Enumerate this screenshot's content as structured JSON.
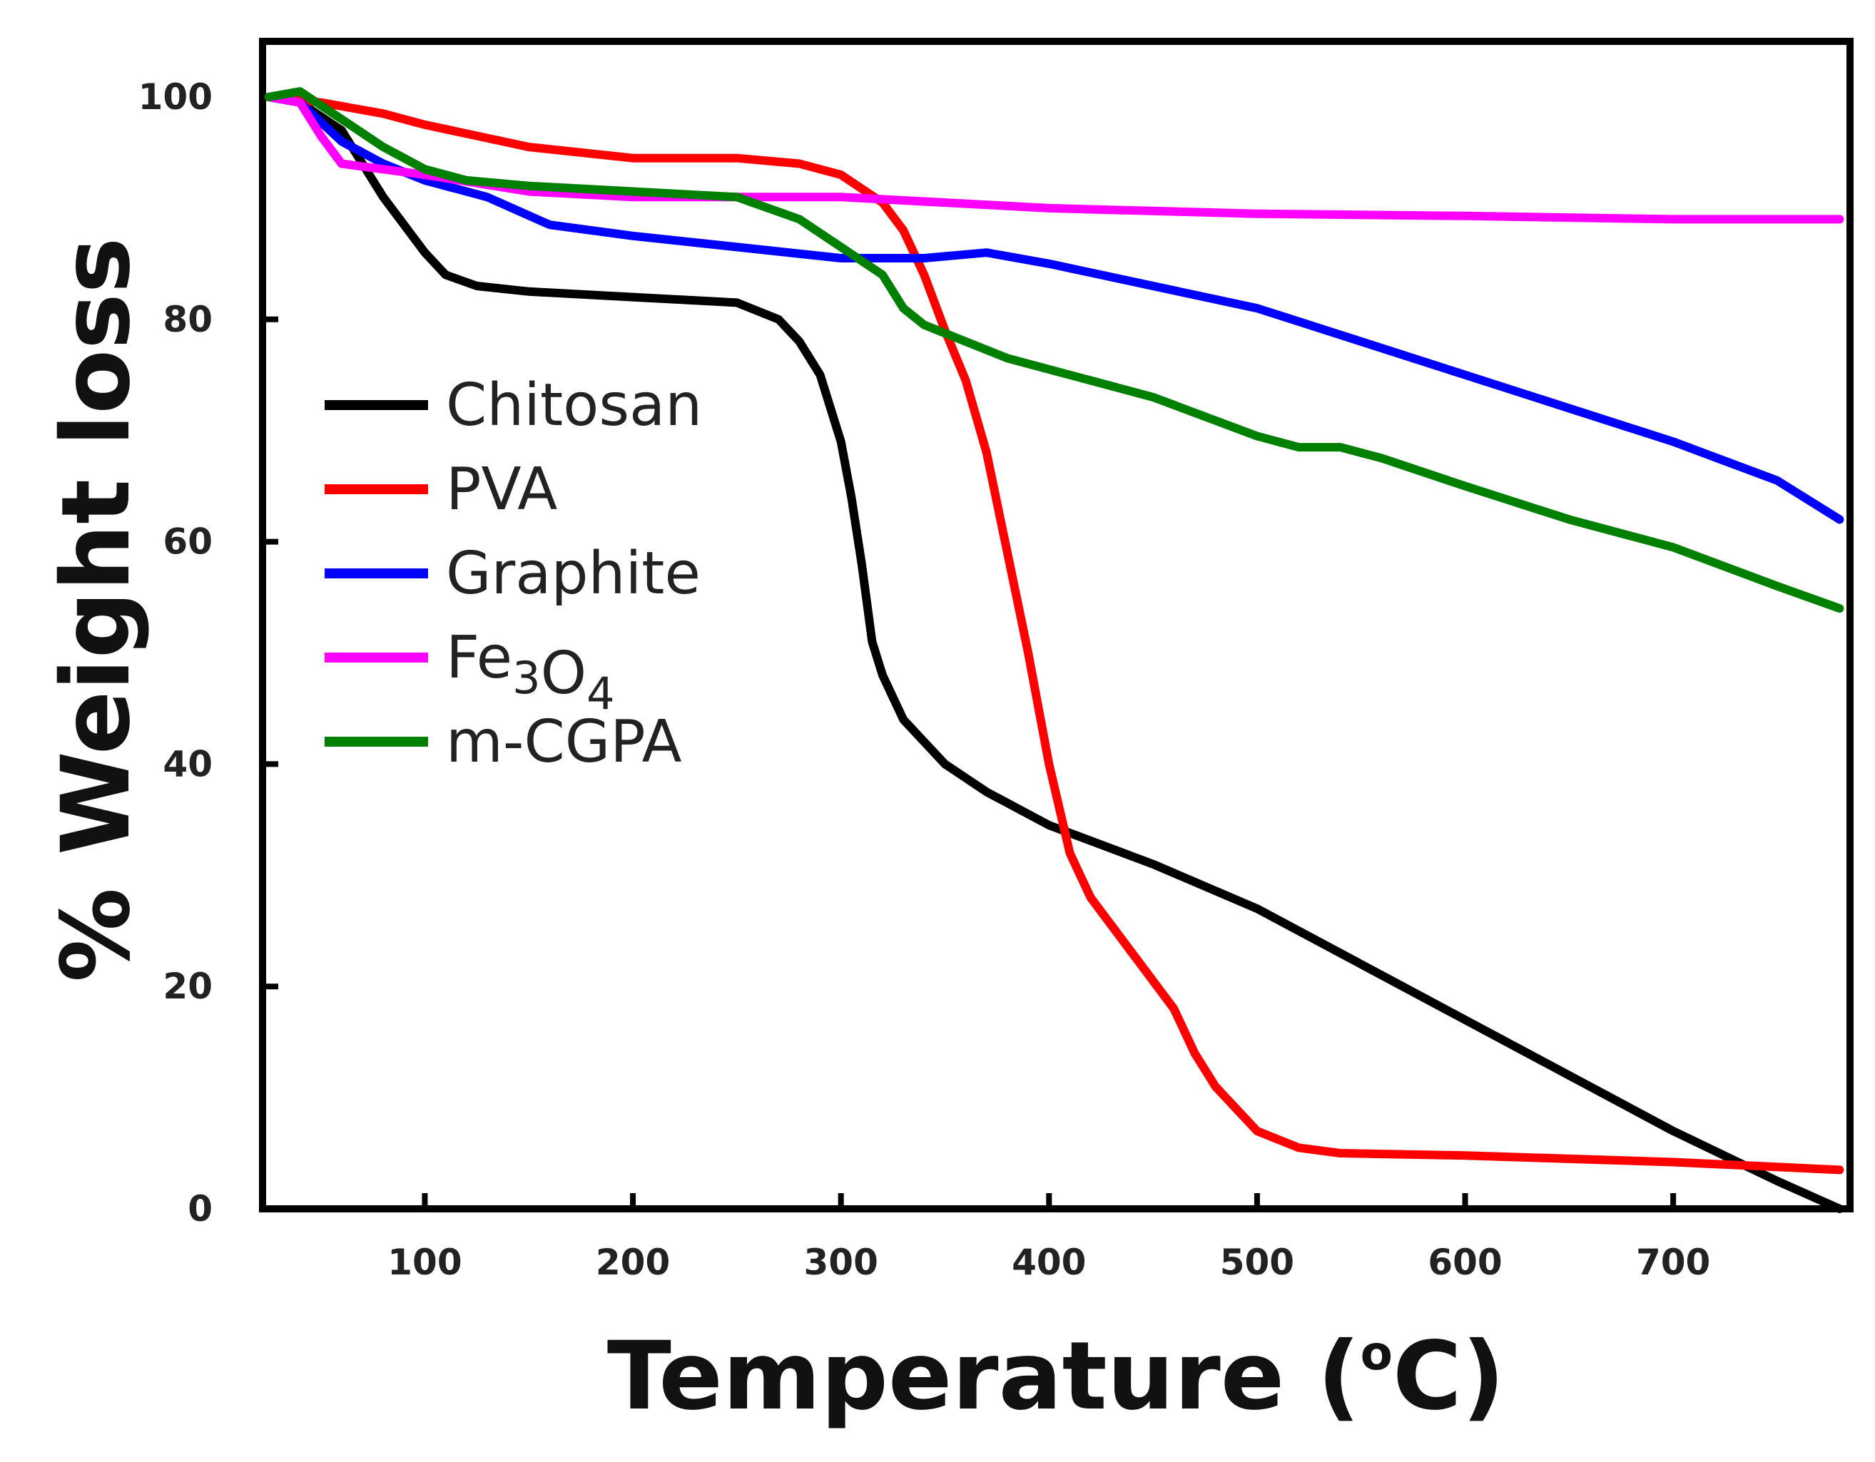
{
  "chart_data": {
    "type": "line",
    "title": "",
    "xlabel": "Temperature (°C)",
    "xlabel_parts": {
      "main": "Temperature (",
      "sup": "o",
      "unit": "C)"
    },
    "ylabel": "% Weight loss",
    "xlim": [
      22,
      785
    ],
    "ylim": [
      0,
      105
    ],
    "x_ticks": [
      100,
      200,
      300,
      400,
      500,
      600,
      700
    ],
    "y_ticks": [
      0,
      20,
      40,
      60,
      80,
      100
    ],
    "grid": false,
    "legend_position": "center-left",
    "series": [
      {
        "name": "Chitosan",
        "label_parts": [
          {
            "text": "Chitosan"
          }
        ],
        "color": "#000000",
        "x": [
          25,
          40,
          60,
          80,
          100,
          110,
          125,
          150,
          200,
          250,
          270,
          280,
          290,
          300,
          305,
          310,
          315,
          320,
          325,
          330,
          340,
          350,
          370,
          400,
          450,
          500,
          550,
          600,
          650,
          700,
          750,
          780
        ],
        "y": [
          100,
          99.5,
          97,
          91,
          86,
          84,
          83,
          82.5,
          82,
          81.5,
          80,
          78,
          75,
          69,
          64,
          58,
          51,
          48,
          46,
          44,
          42,
          40,
          37.5,
          34.5,
          31,
          27,
          22,
          17,
          12,
          7,
          2.5,
          0
        ]
      },
      {
        "name": "PVA",
        "label_parts": [
          {
            "text": "PVA"
          }
        ],
        "color": "#ff0000",
        "x": [
          25,
          50,
          80,
          100,
          150,
          200,
          250,
          280,
          300,
          320,
          330,
          340,
          350,
          360,
          370,
          380,
          390,
          400,
          410,
          420,
          440,
          460,
          470,
          480,
          500,
          520,
          540,
          600,
          700,
          780
        ],
        "y": [
          100,
          99.5,
          98.5,
          97.5,
          95.5,
          94.5,
          94.5,
          94,
          93,
          90.5,
          88,
          84,
          79,
          74.5,
          68,
          59,
          50,
          40,
          32,
          28,
          23,
          18,
          14,
          11,
          7,
          5.5,
          5,
          4.8,
          4.2,
          3.5
        ]
      },
      {
        "name": "Graphite",
        "label_parts": [
          {
            "text": "Graphite"
          }
        ],
        "color": "#0000ff",
        "x": [
          25,
          40,
          60,
          80,
          100,
          130,
          160,
          200,
          250,
          300,
          340,
          370,
          400,
          450,
          500,
          550,
          600,
          650,
          700,
          750,
          780
        ],
        "y": [
          100,
          99.5,
          96,
          94,
          92.5,
          91,
          88.5,
          87.5,
          86.5,
          85.5,
          85.5,
          86,
          85,
          83,
          81,
          78,
          75,
          72,
          69,
          65.5,
          62
        ]
      },
      {
        "name": "Fe3O4",
        "label_parts": [
          {
            "text": "Fe"
          },
          {
            "text": "3",
            "sub": true
          },
          {
            "text": "O"
          },
          {
            "text": "4",
            "sub": true
          }
        ],
        "color": "#ff00ff",
        "x": [
          25,
          40,
          50,
          60,
          80,
          100,
          150,
          200,
          300,
          400,
          500,
          600,
          700,
          780
        ],
        "y": [
          100,
          99.5,
          96.5,
          94,
          93.5,
          93,
          91.5,
          91,
          91,
          90,
          89.5,
          89.3,
          89,
          89
        ]
      },
      {
        "name": "m-CGPA",
        "label_parts": [
          {
            "text": "m-CGPA"
          }
        ],
        "color": "#008000",
        "x": [
          25,
          40,
          60,
          80,
          100,
          120,
          150,
          200,
          250,
          280,
          300,
          320,
          330,
          340,
          360,
          380,
          400,
          450,
          500,
          520,
          540,
          560,
          600,
          650,
          700,
          750,
          780
        ],
        "y": [
          100,
          100.5,
          98,
          95.5,
          93.5,
          92.5,
          92,
          91.5,
          91,
          89,
          86.5,
          84,
          81,
          79.5,
          78,
          76.5,
          75.5,
          73,
          69.5,
          68.5,
          68.5,
          67.5,
          65,
          62,
          59.5,
          56,
          54
        ]
      }
    ]
  }
}
